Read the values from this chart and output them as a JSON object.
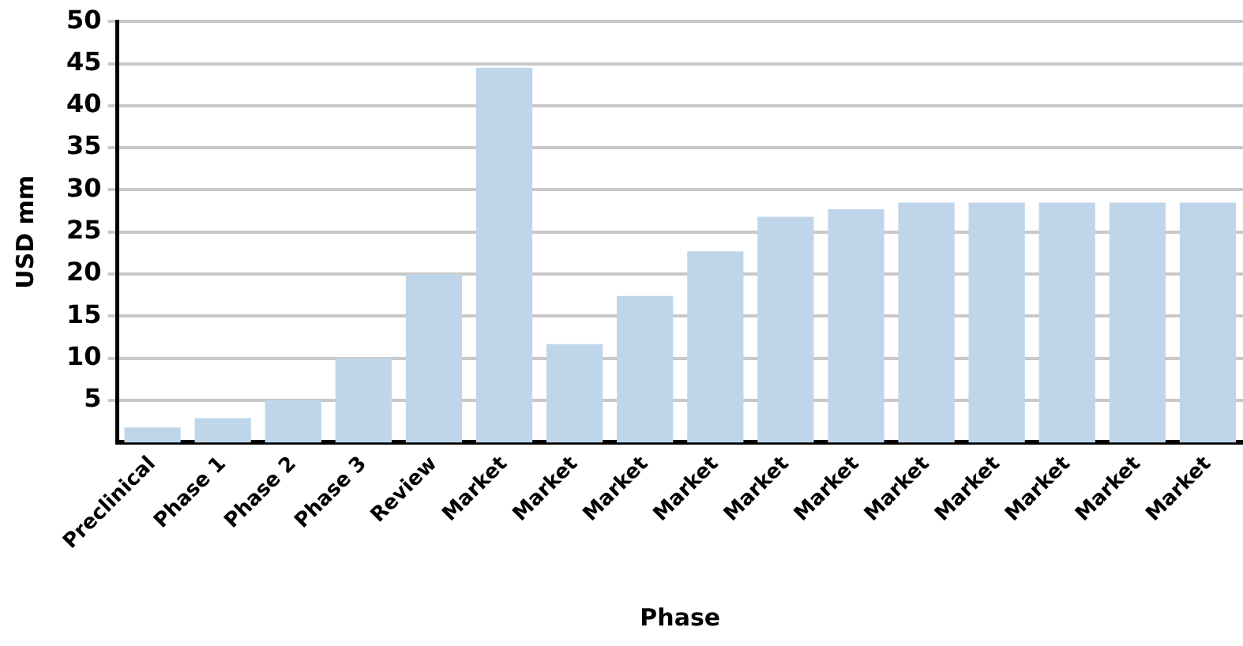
{
  "chart_data": {
    "type": "bar",
    "xlabel": "Phase",
    "ylabel": "USD mm",
    "categories": [
      "Preclinical",
      "Phase 1",
      "Phase 2",
      "Phase 3",
      "Review",
      "Market",
      "Market",
      "Market",
      "Market",
      "Market",
      "Market",
      "Market",
      "Market",
      "Market",
      "Market",
      "Market"
    ],
    "values": [
      1.8,
      2.9,
      5,
      10,
      20,
      44.5,
      11.7,
      17.4,
      22.7,
      26.8,
      27.7,
      28.5,
      28.5,
      28.5,
      28.5,
      28.5
    ],
    "color": "#bfd6ea",
    "ylim": [
      0,
      50
    ],
    "yticks": [
      5,
      10,
      15,
      20,
      25,
      30,
      35,
      40,
      45,
      50
    ],
    "grid": "y"
  }
}
